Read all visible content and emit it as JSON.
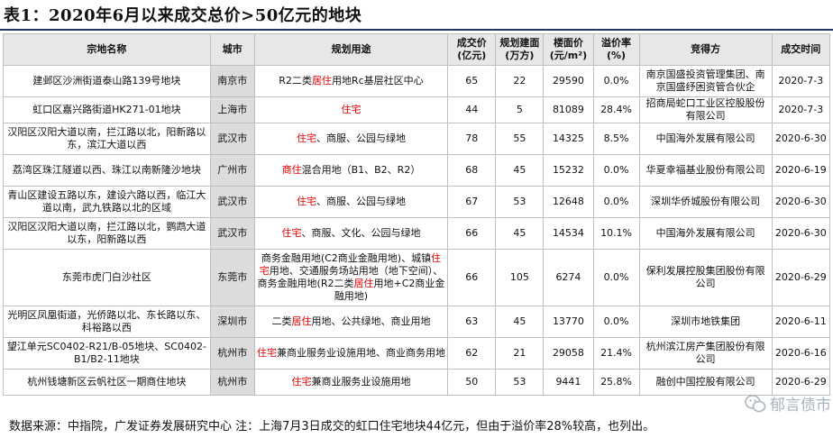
{
  "title": "表1：2020年6月以来成交总价>50亿元的地块",
  "headers": [
    "宗地名称",
    "城市",
    "规划用途",
    "成交价\n(亿元)",
    "规划建面\n(万方)",
    "楼面价\n(元/m²)",
    "溢价率\n(%)",
    "竞得方",
    "成交时间"
  ],
  "rows": [
    {
      "name": "建邺区沙洲街道泰山路139号地块",
      "city": "南京市",
      "plan": [
        [
          "R2二类",
          false
        ],
        [
          "居住",
          true
        ],
        [
          "用地Rc基层社区中心",
          false
        ]
      ],
      "price": "65",
      "area": "22",
      "unit_price": "29590",
      "premium": "0.0%",
      "buyer": "南京国盛投资管理集团、南京国盛纾困资管合伙企",
      "date": "2020-7-3",
      "compact": false
    },
    {
      "name": "虹口区嘉兴路街道HK271-01地块",
      "city": "上海市",
      "plan": [
        [
          "住宅",
          true
        ]
      ],
      "price": "44",
      "area": "5",
      "unit_price": "81089",
      "premium": "28.4%",
      "buyer": "招商局蛇口工业区控股股份有限公司",
      "date": "2020-7-3",
      "compact": true
    },
    {
      "name": "汉阳区汉阳大道以南，拦江路以北，阳新路以东，滨江大道以西",
      "city": "武汉市",
      "plan": [
        [
          "住宅",
          true
        ],
        [
          "、商服、公园与绿地",
          false
        ]
      ],
      "price": "78",
      "area": "55",
      "unit_price": "14325",
      "premium": "8.5%",
      "buyer": "中国海外发展有限公司",
      "date": "2020-6-30",
      "compact": false
    },
    {
      "name": "荔湾区珠江隧道以西、珠江以南新隆沙地块",
      "city": "广州市",
      "plan": [
        [
          "商住",
          true
        ],
        [
          "混合用地（B1、B2、R2）",
          false
        ]
      ],
      "price": "68",
      "area": "45",
      "unit_price": "15232",
      "premium": "0.0%",
      "buyer": "华夏幸福基业股份有限公司",
      "date": "2020-6-19",
      "compact": false
    },
    {
      "name": "青山区建设五路以东，建设六路以西，临江大道以南，武九铁路以北的区域",
      "city": "武汉市",
      "plan": [
        [
          "住宅",
          true
        ],
        [
          "、商服、公园与绿地",
          false
        ]
      ],
      "price": "67",
      "area": "53",
      "unit_price": "12648",
      "premium": "0.0%",
      "buyer": "深圳华侨城股份有限公司",
      "date": "2020-6-30",
      "compact": false
    },
    {
      "name": "汉阳区汉阳大道以南，拦江路以北，鹦鹉大道以东，阳新路以西",
      "city": "武汉市",
      "plan": [
        [
          "住宅",
          true
        ],
        [
          "、商服、文化、公园与绿地",
          false
        ]
      ],
      "price": "66",
      "area": "45",
      "unit_price": "14534",
      "premium": "10.1%",
      "buyer": "中国海外发展有限公司",
      "date": "2020-6-30",
      "compact": false
    },
    {
      "name": "东莞市虎门白沙社区",
      "city": "东莞市",
      "plan": [
        [
          "商务金融用地(C2商业金融用地)、城镇",
          false
        ],
        [
          "住宅",
          true
        ],
        [
          "用地、交通服务场站用地（地下空间）、商务金融用地(R2二类",
          false
        ],
        [
          "居住",
          true
        ],
        [
          "用地+C2商业金融用地)",
          false
        ]
      ],
      "price": "66",
      "area": "105",
      "unit_price": "6274",
      "premium": "0.0%",
      "buyer": "保利发展控股集团股份有限公司",
      "date": "2020-6-29",
      "compact": false,
      "tall": true
    },
    {
      "name": "光明区凤凰街道，光侨路以北、东长路以东、科裕路以西",
      "city": "深圳市",
      "plan": [
        [
          "二类",
          false
        ],
        [
          "居住",
          true
        ],
        [
          "用地、公共绿地、商业用地",
          false
        ]
      ],
      "price": "63",
      "area": "45",
      "unit_price": "13770",
      "premium": "0.0%",
      "buyer": "深圳市地铁集团",
      "date": "2020-6-11",
      "compact": false
    },
    {
      "name": "望江单元SC0402-R21/B-05地块、SC0402-B1/B2-11地块",
      "city": "杭州市",
      "plan": [
        [
          "住宅",
          true
        ],
        [
          "兼商业服务业设施用地、商业商务用地",
          false
        ]
      ],
      "price": "62",
      "area": "21",
      "unit_price": "29058",
      "premium": "21.4%",
      "buyer": "杭州滨江房产集团股份有限公司",
      "date": "2020-6-16",
      "compact": false
    },
    {
      "name": "杭州钱塘新区云帆社区一期商住地块",
      "city": "杭州市",
      "plan": [
        [
          "住宅",
          true
        ],
        [
          "兼商业服务业设施用地",
          false
        ]
      ],
      "price": "50",
      "area": "53",
      "unit_price": "9441",
      "premium": "25.8%",
      "buyer": "融创中国控股有限公司",
      "date": "2020-6-29",
      "compact": true
    }
  ],
  "footnote": "数据来源：中指院，广发证券发展研究中心 注：上海7月3日成交的虹口住宅地块44亿元，但由于溢价率28%较高，也列出。",
  "watermark": "郁言债市"
}
